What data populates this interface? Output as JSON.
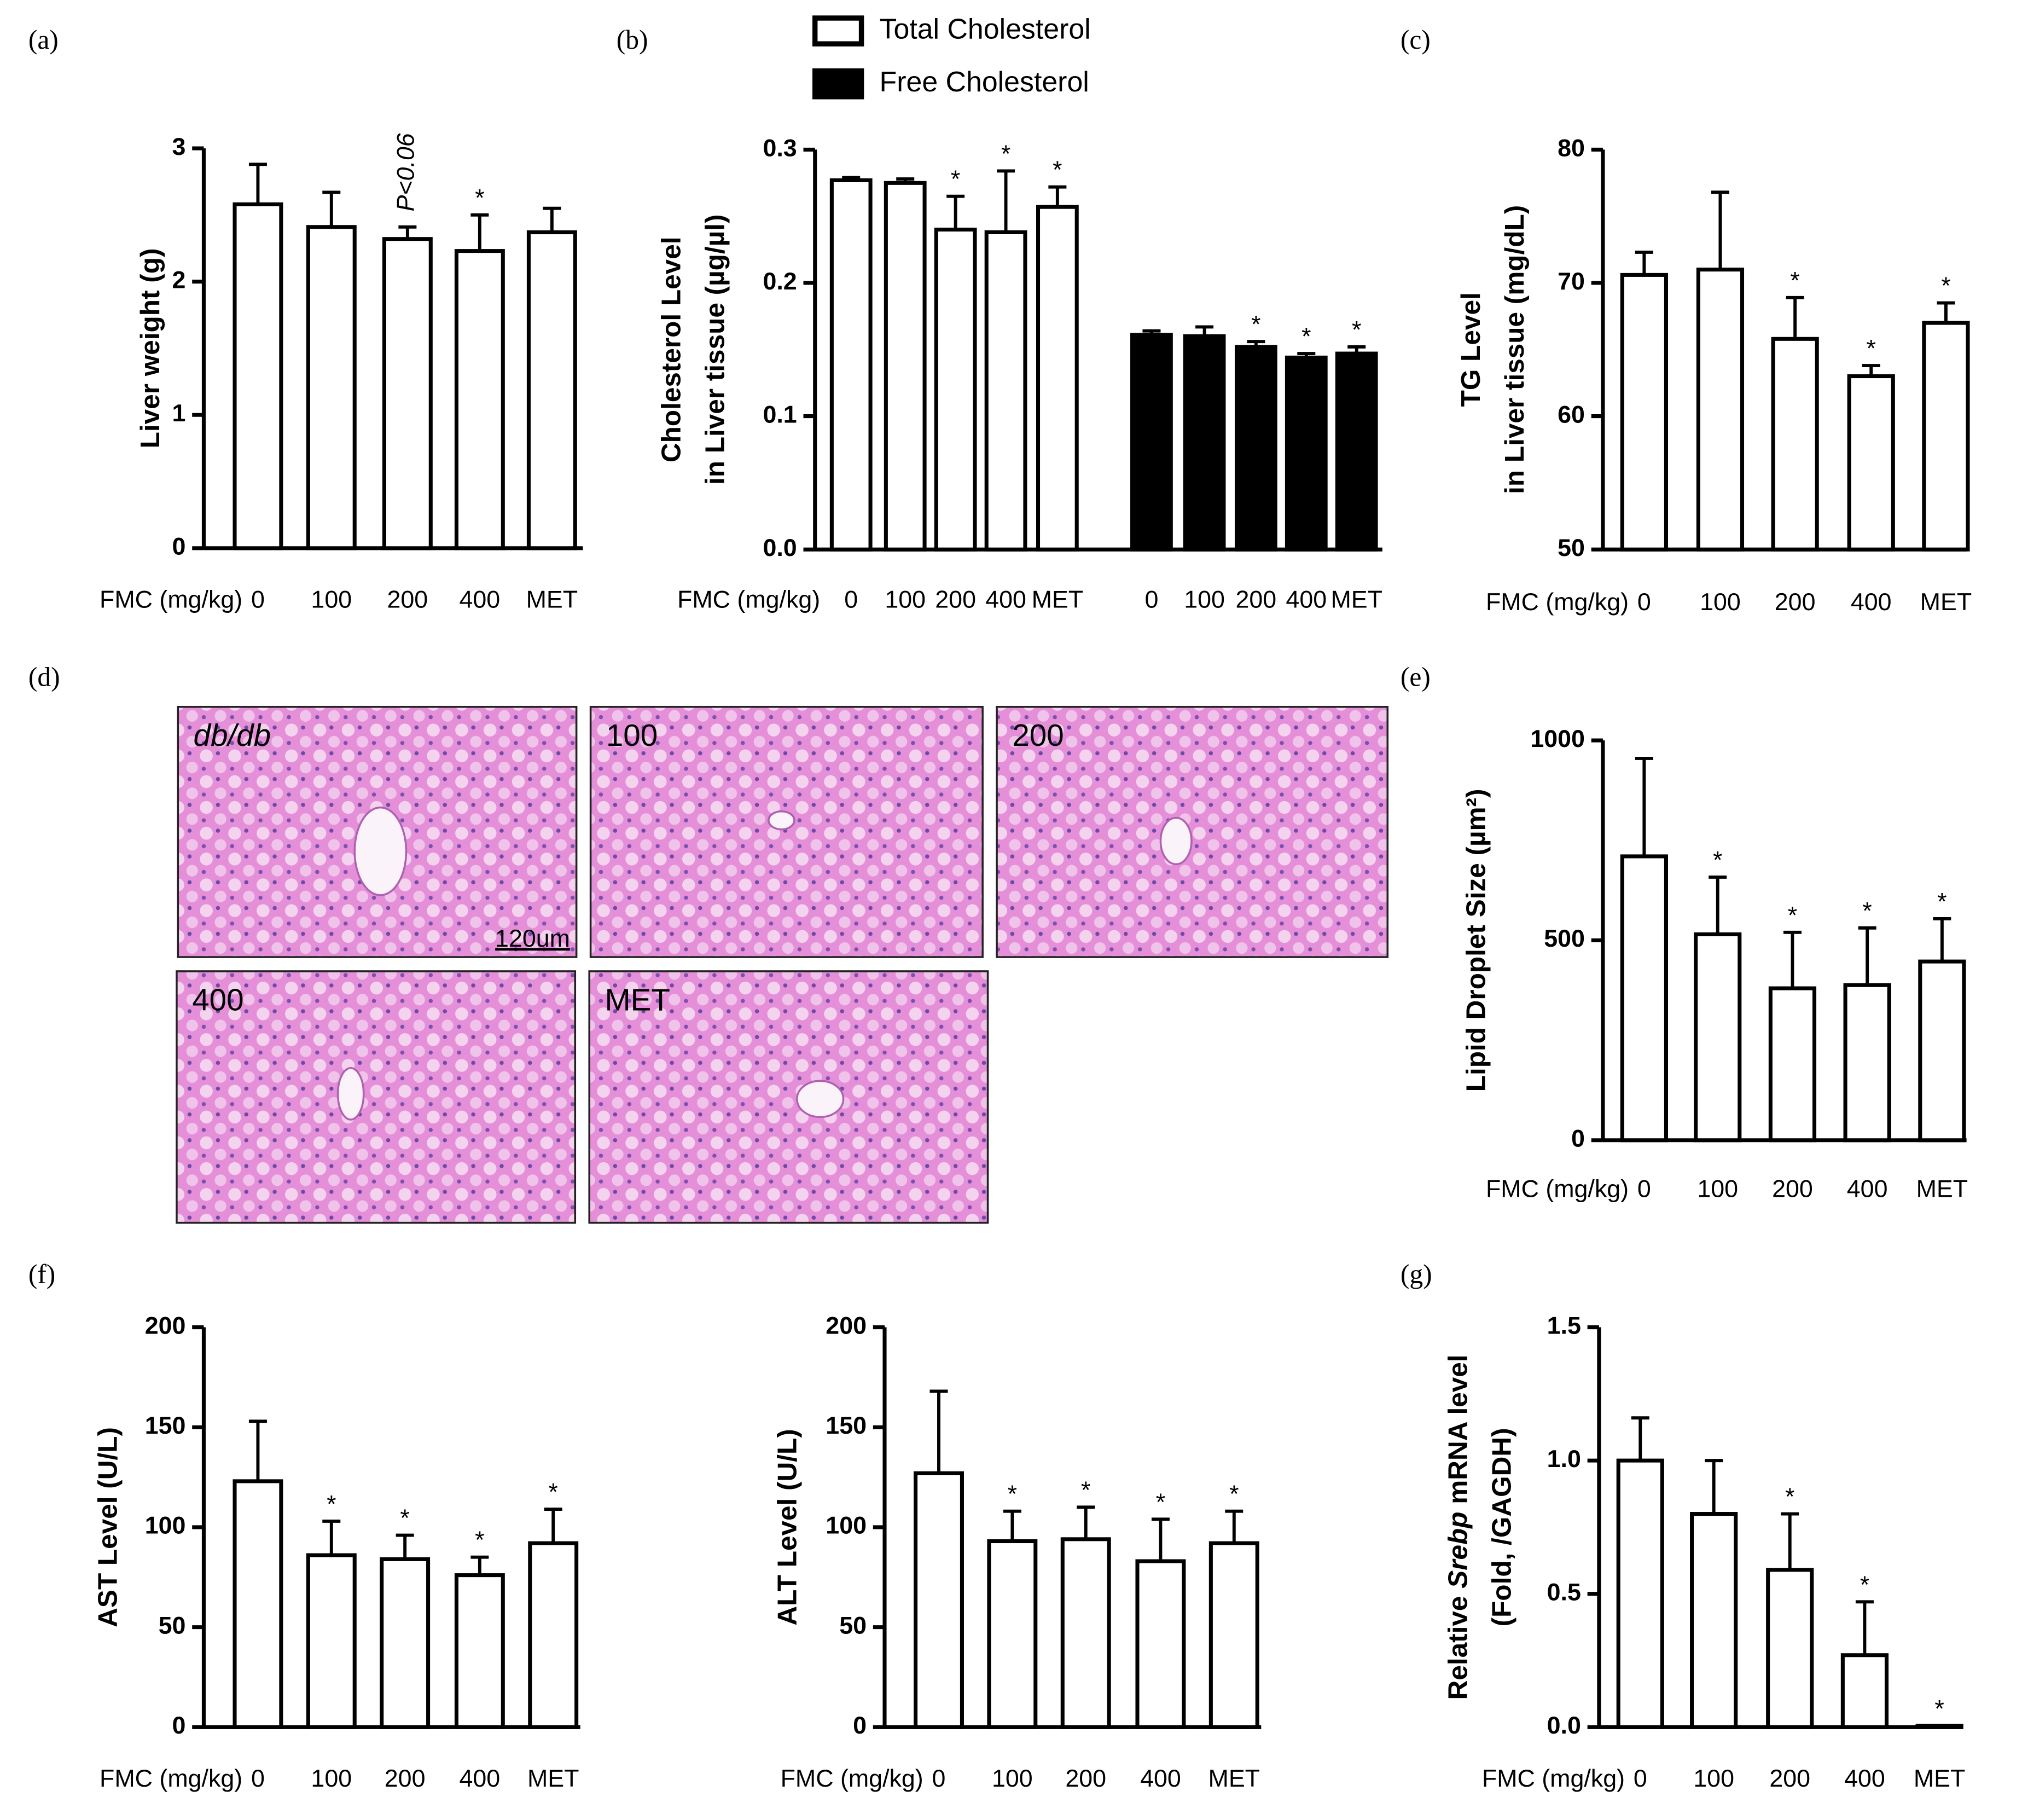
{
  "panel_labels": [
    "(a)",
    "(b)",
    "(c)",
    "(d)",
    "(e)",
    "(f)",
    "(g)"
  ],
  "histology": {
    "labels": [
      "db/db",
      "100",
      "200",
      "400",
      "MET"
    ],
    "italic_labels": [
      "db/db"
    ],
    "scale_bar": "120um"
  },
  "chart_data": [
    {
      "type": "bar",
      "ylabel": [
        "Liver weight (g)"
      ],
      "xlabel": "FMC (mg/kg)",
      "categories": [
        "0",
        "100",
        "200",
        "400",
        "MET"
      ],
      "series": [
        {
          "color": "#ffffff",
          "values": [
            2.58,
            2.41,
            2.32,
            2.23,
            2.37
          ],
          "errors": [
            0.3,
            0.26,
            0.09,
            0.27,
            0.18
          ],
          "annotations": [
            null,
            null,
            "P<0.06",
            "*",
            null
          ]
        }
      ],
      "ylim": [
        0,
        3
      ],
      "yticks": [
        0,
        1,
        2,
        3
      ]
    },
    {
      "type": "bar",
      "ylabel": [
        "Cholesterol Level",
        "in Liver tissue (µg/µl)"
      ],
      "xlabel": "FMC (mg/kg)",
      "categories": [
        "0",
        "100",
        "200",
        "400",
        "MET"
      ],
      "series": [
        {
          "name": "Total Cholesterol",
          "color": "#ffffff",
          "values": [
            0.277,
            0.275,
            0.24,
            0.238,
            0.257
          ],
          "errors": [
            0.002,
            0.003,
            0.025,
            0.046,
            0.015
          ],
          "annotations": [
            null,
            null,
            "*",
            "*",
            "*"
          ]
        },
        {
          "name": "Free Cholesterol",
          "color": "#000000",
          "values": [
            0.161,
            0.16,
            0.152,
            0.144,
            0.147
          ],
          "errors": [
            0.003,
            0.007,
            0.004,
            0.003,
            0.005
          ],
          "annotations": [
            null,
            null,
            "*",
            "*",
            "*"
          ]
        }
      ],
      "ylim": [
        0,
        0.3
      ],
      "yticks": [
        {
          "value": 0,
          "label": "0.0"
        },
        0.1,
        0.2,
        0.3
      ]
    },
    {
      "type": "bar",
      "ylabel": [
        "TG Level",
        "in Liver tissue (mg/dL)"
      ],
      "xlabel": "FMC (mg/kg)",
      "categories": [
        "0",
        "100",
        "200",
        "400",
        "MET"
      ],
      "series": [
        {
          "color": "#ffffff",
          "values": [
            70.6,
            71.0,
            65.8,
            63.0,
            67.0
          ],
          "errors": [
            1.7,
            5.8,
            3.1,
            0.8,
            1.5
          ],
          "annotations": [
            null,
            null,
            "*",
            "*",
            "*"
          ]
        }
      ],
      "ylim": [
        50,
        80
      ],
      "yticks": [
        50,
        60,
        70,
        80
      ]
    },
    {
      "type": "bar",
      "ylabel": [
        "Lipid Droplet Size (µm²)"
      ],
      "xlabel": "FMC (mg/kg)",
      "categories": [
        "0",
        "100",
        "200",
        "400",
        "MET"
      ],
      "series": [
        {
          "color": "#ffffff",
          "values": [
            710,
            515,
            380,
            388,
            447
          ],
          "errors": [
            245,
            143,
            140,
            143,
            107
          ],
          "annotations": [
            null,
            "*",
            "*",
            "*",
            "*"
          ]
        }
      ],
      "ylim": [
        0,
        1000
      ],
      "yticks": [
        0,
        500,
        1000
      ]
    },
    {
      "type": "bar",
      "ylabel": [
        "AST Level (U/L)"
      ],
      "xlabel": "FMC (mg/kg)",
      "categories": [
        "0",
        "100",
        "200",
        "400",
        "MET"
      ],
      "series": [
        {
          "color": "#ffffff",
          "values": [
            123,
            86,
            84,
            76,
            92
          ],
          "errors": [
            30,
            17,
            12,
            9,
            17
          ],
          "annotations": [
            null,
            "*",
            "*",
            "*",
            "*"
          ]
        }
      ],
      "ylim": [
        0,
        200
      ],
      "yticks": [
        0,
        50,
        100,
        150,
        200
      ]
    },
    {
      "type": "bar",
      "ylabel": [
        "ALT Level (U/L)"
      ],
      "xlabel": "FMC (mg/kg)",
      "categories": [
        "0",
        "100",
        "200",
        "400",
        "MET"
      ],
      "series": [
        {
          "color": "#ffffff",
          "values": [
            127,
            93,
            94,
            83,
            92
          ],
          "errors": [
            41,
            15,
            16,
            21,
            16
          ],
          "annotations": [
            null,
            "*",
            "*",
            "*",
            "*"
          ]
        }
      ],
      "ylim": [
        0,
        200
      ],
      "yticks": [
        0,
        50,
        100,
        150,
        200
      ]
    },
    {
      "type": "bar",
      "ylabel": [
        "Relative Srebp mRNA level",
        "(Fold, /GAGDH)"
      ],
      "ylabel_italic": "Srebp",
      "xlabel": "FMC (mg/kg)",
      "categories": [
        "0",
        "100",
        "200",
        "400",
        "MET"
      ],
      "series": [
        {
          "color": "#ffffff",
          "values": [
            1.0,
            0.8,
            0.59,
            0.27,
            0.005
          ],
          "errors": [
            0.16,
            0.2,
            0.21,
            0.2,
            0
          ],
          "annotations": [
            null,
            null,
            "*",
            "*",
            "*"
          ]
        }
      ],
      "ylim": [
        0,
        1.5
      ],
      "yticks": [
        {
          "value": 0,
          "label": "0.0"
        },
        0.5,
        {
          "value": 1,
          "label": "1.0"
        },
        1.5
      ]
    }
  ]
}
